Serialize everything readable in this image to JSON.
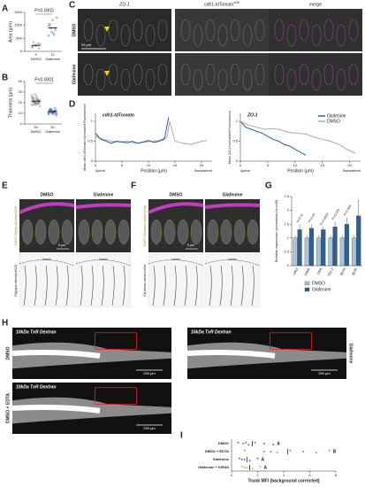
{
  "panels": {
    "A": {
      "label": "A",
      "ylabel": "Area (µm²)",
      "pvalue": "P=0.0002",
      "categories": [
        "DMSO",
        "Glafenine"
      ],
      "n": [
        "9",
        "12"
      ],
      "ylim": [
        0,
        1500
      ],
      "yticks": [
        0,
        500,
        1000,
        1500
      ],
      "points": [
        [
          150,
          220,
          300,
          180,
          260,
          120,
          340,
          200,
          280
        ],
        [
          600,
          750,
          900,
          1050,
          1200,
          820,
          980,
          700,
          1300,
          880,
          640,
          1000
        ]
      ],
      "means": [
        230,
        900
      ]
    },
    "B": {
      "label": "B",
      "ylabel": "Thickness (µm)",
      "pvalue": "P<0.0001",
      "categories": [
        "DMSO",
        "Glafenine"
      ],
      "n": [
        "30",
        "30"
      ],
      "ylim": [
        0,
        40
      ],
      "yticks": [
        0,
        10,
        20,
        30,
        40
      ],
      "points": [
        [
          18,
          20,
          22,
          24,
          19,
          21,
          23,
          26,
          17,
          20,
          22,
          25,
          28,
          19,
          21,
          23,
          20,
          18,
          24,
          22,
          21,
          19,
          27,
          20,
          23,
          22,
          18,
          21,
          25,
          20
        ],
        [
          9,
          11,
          12,
          13,
          10,
          12,
          14,
          11,
          8,
          13,
          12,
          10,
          11,
          15,
          12,
          9,
          13,
          11,
          12,
          10,
          14,
          12,
          11,
          13,
          10,
          12,
          11,
          9,
          13,
          12
        ]
      ],
      "means": [
        21.5,
        11.6
      ]
    },
    "C": {
      "label": "C",
      "columns": [
        "ZO-1",
        "cdh1-tdTomato",
        "merge"
      ],
      "column_sup": "xt18",
      "rows": [
        "DMSO",
        "Glafenine"
      ],
      "scale": "25 µm"
    },
    "D": {
      "label": "D",
      "xlabel": "Position (µm)",
      "apical": "Apical",
      "basal": "Basolateral",
      "charts": [
        {
          "title": "cdh1-tdTomato",
          "ylabel": "Mean cdh1-tdTomato Normalized Fluorescence",
          "xlim": [
            0,
            22
          ],
          "xticks": [
            0,
            5,
            10,
            15,
            20
          ],
          "ylim": [
            0,
            1.2
          ],
          "yticks": [
            0,
            0.5,
            1
          ],
          "series": [
            {
              "name": "DMSO",
              "color": "#aaaaaa",
              "x": [
                0,
                1.5,
                3,
                4.5,
                6,
                7.5,
                9,
                10.5,
                12,
                13.5,
                14,
                15,
                16.5,
                18,
                19.5,
                21
              ],
              "values": [
                0.62,
                0.55,
                0.5,
                0.48,
                0.5,
                0.45,
                0.47,
                0.5,
                0.52,
                0.6,
                1.0,
                0.5,
                0.45,
                0.42,
                0.48,
                0.52
              ]
            },
            {
              "name": "Glafenine",
              "color": "#2a5caa",
              "x": [
                0,
                1,
                2,
                3,
                4,
                5,
                6,
                7,
                8,
                9,
                10,
                11,
                12,
                13,
                13.8
              ],
              "values": [
                0.7,
                0.55,
                0.5,
                0.45,
                0.5,
                0.48,
                0.46,
                0.5,
                0.45,
                0.48,
                0.52,
                0.47,
                0.5,
                0.55,
                1.1
              ]
            }
          ]
        },
        {
          "title": "ZO-1",
          "ylabel": "Mean ZO-1 Normalized Fluorescence",
          "xlim": [
            0,
            22
          ],
          "xticks": [
            0,
            5,
            10,
            15,
            20
          ],
          "ylim": [
            0,
            1.2
          ],
          "yticks": [
            0,
            0.5,
            1
          ],
          "series": [
            {
              "name": "Glafenine",
              "color": "#2a5caa",
              "x": [
                0,
                1,
                2,
                3,
                4,
                5,
                6,
                7,
                8,
                9,
                10,
                11,
                12
              ],
              "values": [
                1.0,
                0.85,
                0.8,
                0.75,
                0.7,
                0.62,
                0.55,
                0.5,
                0.42,
                0.38,
                0.3,
                0.22,
                0.15
              ]
            },
            {
              "name": "DMSO",
              "color": "#aaaaaa",
              "x": [
                0,
                1.5,
                3,
                4.5,
                6,
                7.5,
                9,
                10.5,
                12,
                13.5,
                15,
                16.5,
                18,
                19.5,
                21
              ],
              "values": [
                1.0,
                0.9,
                0.85,
                0.8,
                0.82,
                0.78,
                0.72,
                0.7,
                0.68,
                0.6,
                0.55,
                0.5,
                0.42,
                0.3,
                0.2
              ]
            }
          ]
        }
      ]
    },
    "E": {
      "label": "E",
      "columns": [
        "DMSO",
        "Glafenine"
      ],
      "top_label": "DAPI Gt(jup-citrine)ct520",
      "bottom_label": "Gt(jupa-citrine)ct520",
      "scale": "5 µm",
      "lumen": "lumen"
    },
    "F": {
      "label": "F",
      "columns": [
        "DMSO",
        "Glafenine"
      ],
      "top_label": "DAPI Gt(ctnna-citrine)ct3a",
      "bottom_label": "Gt(ctnna-citrine)ct3a",
      "scale": "5 µm",
      "lumen": "lumen"
    },
    "G": {
      "label": "G",
      "ylabel": "Relative expression (normalized to rt45)",
      "ylim": [
        0,
        2.5
      ],
      "yticks": [
        0,
        0.5,
        1,
        1.5,
        2,
        2.5
      ],
      "categories": [
        "cdh1",
        "cldnb",
        "jupa",
        "f11r.1",
        "tjp1a",
        "tjp2b"
      ],
      "pvalues": [
        "P=0.11",
        "P=0.04",
        "P=0.0002",
        "P=0.009",
        "P=0.006",
        null
      ],
      "series": [
        {
          "name": "DMSO",
          "color": "#a9c4de",
          "values": [
            1,
            1,
            1,
            1,
            1,
            1
          ],
          "errors": [
            0.1,
            0.1,
            0.1,
            0.1,
            0.1,
            0.1
          ]
        },
        {
          "name": "Glafenine",
          "color": "#2f5f93",
          "values": [
            1.3,
            1.35,
            1.3,
            1.4,
            1.5,
            1.8
          ],
          "errors": [
            0.2,
            0.15,
            0.1,
            0.2,
            0.25,
            0.6
          ]
        }
      ]
    },
    "H": {
      "label": "H",
      "images": [
        {
          "condition": "DMSO",
          "title": "10kDa TxR Dextran",
          "scale": "250 µm"
        },
        {
          "condition": "Glafenine",
          "title": "10kDa TxR Dextran",
          "scale": "250 µm"
        },
        {
          "condition": "DMSO + EDTA",
          "title": "10kDa TxR Dextran",
          "scale": "250 µm"
        }
      ]
    },
    "I": {
      "label": "I",
      "xlabel": "Trunk MFI (background corrected)",
      "xlim": [
        0,
        8
      ],
      "xticks": [
        0,
        2,
        4,
        6,
        8
      ],
      "rows": [
        "DMSO",
        "DMSO + EDTA",
        "Glafenine",
        "Glafenine + KIRA6"
      ],
      "letters": [
        "A",
        "B",
        "A",
        "A"
      ],
      "colors": [
        "#2a5caa",
        "#d9534f",
        "#2a5caa",
        "#d98c3f"
      ],
      "points": [
        [
          0.5,
          0.9,
          1.3,
          1.8,
          2.5,
          3.2,
          1.1
        ],
        [
          1.0,
          2.5,
          3.5,
          4.5,
          5.5,
          6.5,
          7.5,
          3.0
        ],
        [
          0.6,
          1.0,
          1.4,
          2.0,
          0.8
        ],
        [
          0.8,
          1.2,
          1.6,
          2.2,
          1.0
        ]
      ],
      "means": [
        1.6,
        4.3,
        1.2,
        1.4
      ]
    }
  }
}
